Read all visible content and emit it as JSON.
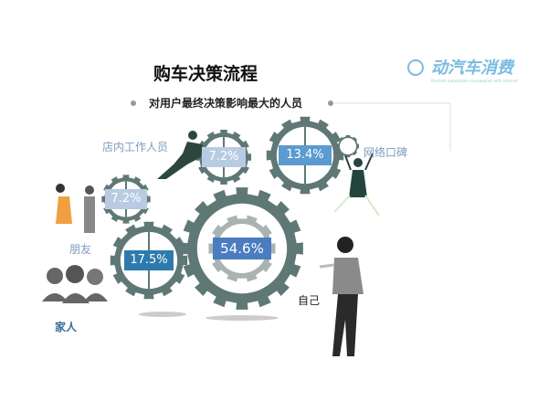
{
  "header": {
    "title": "购车决策流程",
    "subtitle": "对用户最终决策影响最大的人员",
    "logo_text": "动汽车消费",
    "logo_tagline": "Promote automobile consumption with Internet"
  },
  "colors": {
    "gear": "#5f7876",
    "gear_inner": "#a9b3b2",
    "box_self": "#4a7cc0",
    "box_family": "#2d7bad",
    "box_online": "#5b9bcf",
    "box_light": "#b8cbe3",
    "label": "#7d9bbd"
  },
  "items": [
    {
      "label": "自己",
      "value": "54.6%",
      "share": 54.6
    },
    {
      "label": "家人",
      "value": "17.5%",
      "share": 17.5
    },
    {
      "label": "网络口碑",
      "value": "13.4%",
      "share": 13.4
    },
    {
      "label": "店内工作人员",
      "value": "7.2%",
      "share": 7.2
    },
    {
      "label": "朋友",
      "value": "7.2%",
      "share": 7.2
    }
  ]
}
